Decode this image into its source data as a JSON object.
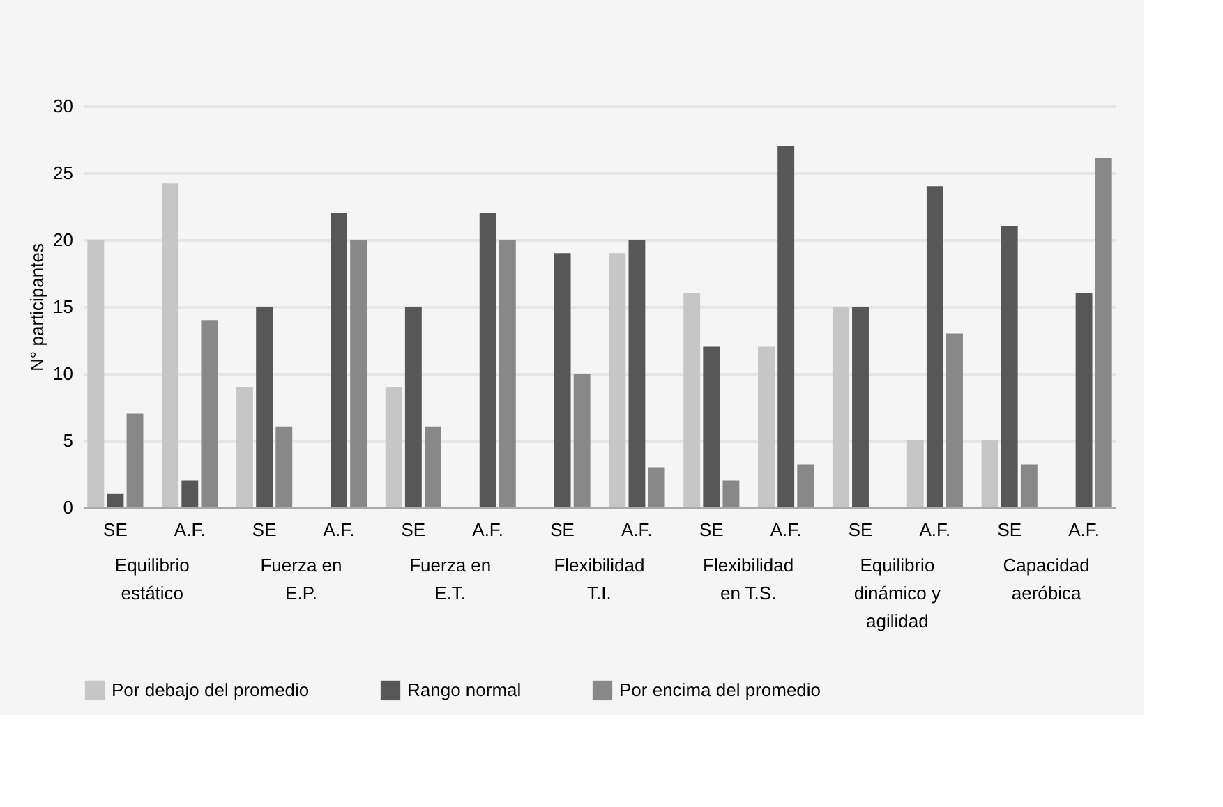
{
  "chart_data": {
    "type": "bar",
    "ylabel": "N° participantes",
    "categories": [
      "SE",
      "A.F.",
      "SE",
      "A.F.",
      "SE",
      "A.F.",
      "SE",
      "A.F.",
      "SE",
      "A.F.",
      "SE",
      "A.F.",
      "SE",
      "A.F."
    ],
    "annotations": [
      "Equilibrio estático",
      "Fuerza en E.P.",
      "Fuerza en E.T.",
      "Flexibilidad T.I.",
      "Flexibilidad en T.S.",
      "Equilibrio dinámico y agilidad",
      "Capacidad aeróbica"
    ],
    "series": [
      {
        "name": "Por debajo del promedio",
        "color": "#c6c6c6",
        "values": [
          20,
          24.2,
          9,
          0,
          9,
          0,
          0,
          19,
          16,
          12,
          15,
          5,
          5,
          0
        ]
      },
      {
        "name": "Rango normal",
        "color": "#575757",
        "values": [
          1,
          2,
          15,
          22,
          15,
          22,
          19,
          20,
          12,
          27,
          15,
          24,
          21,
          16
        ]
      },
      {
        "name": "Por encima del promedio",
        "color": "#888888",
        "values": [
          7,
          14,
          6,
          20,
          6,
          20,
          10,
          3,
          2,
          3.2,
          0,
          13,
          3.2,
          26.1
        ]
      }
    ],
    "ylim": [
      0,
      30
    ],
    "yticks": [
      0,
      5,
      10,
      15,
      20,
      25,
      30
    ],
    "grid": "y",
    "legend": "bottom"
  }
}
